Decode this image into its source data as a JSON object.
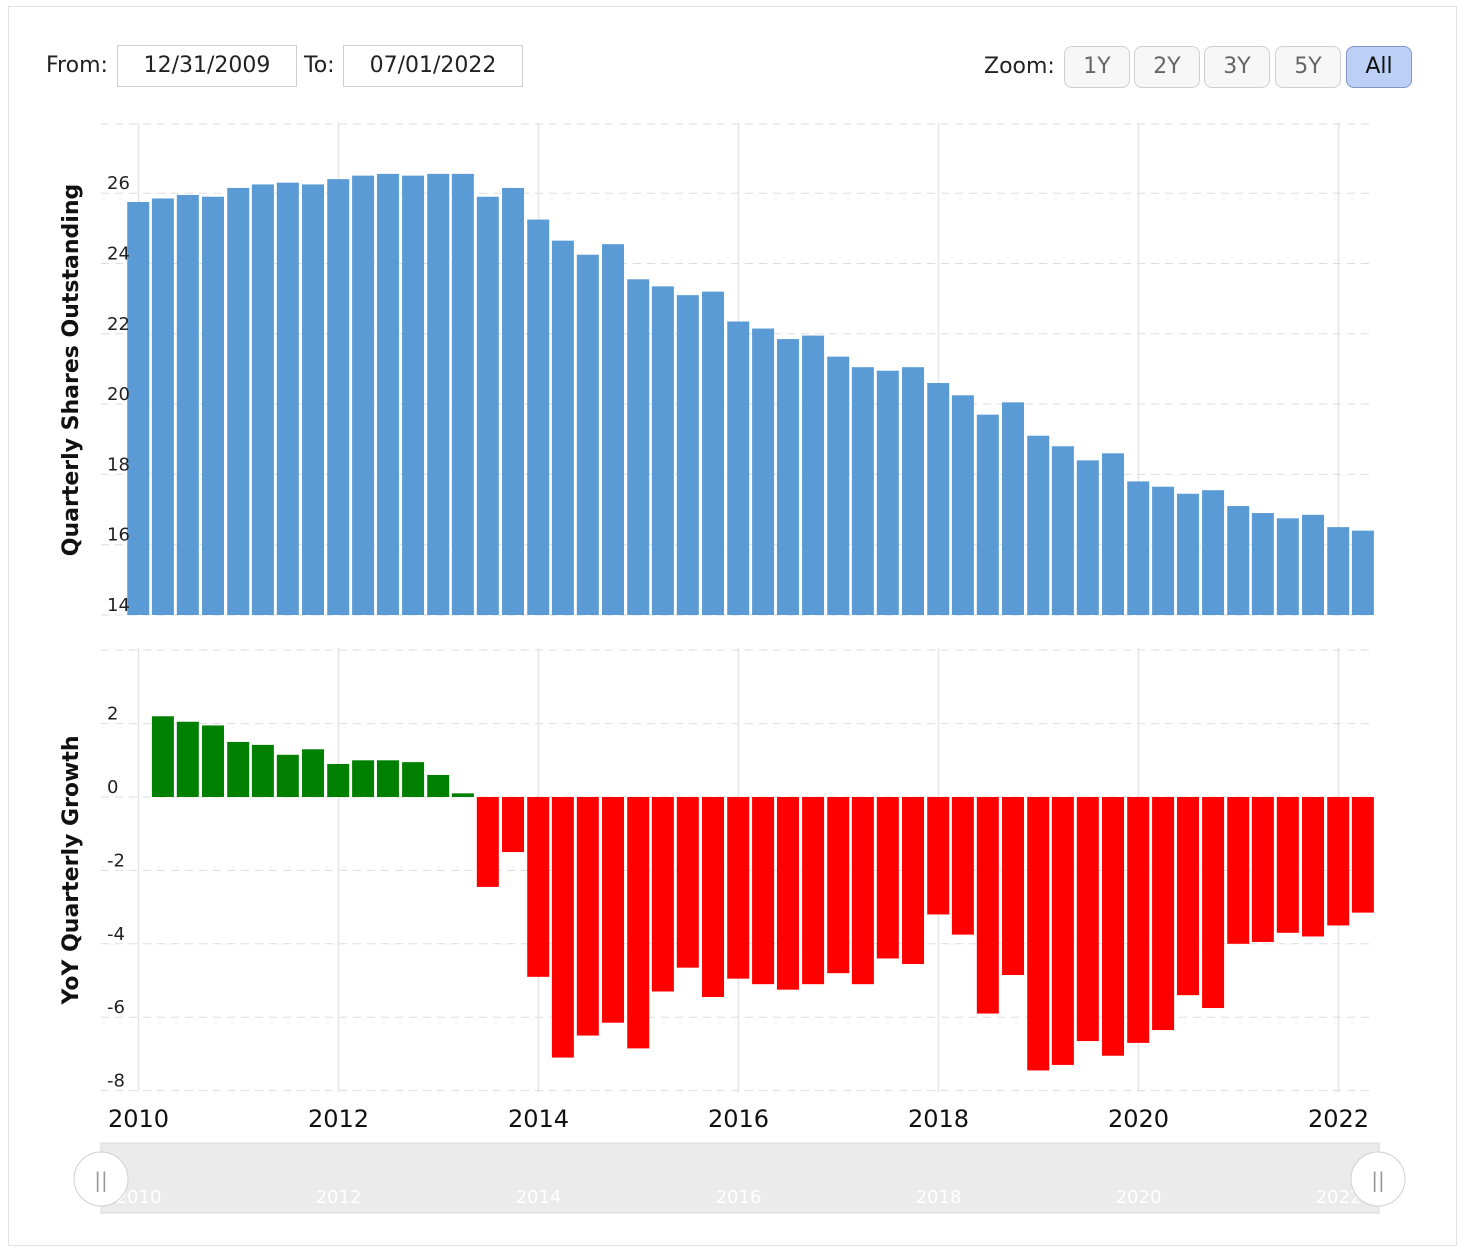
{
  "controls": {
    "from_label": "From:",
    "from_value": "12/31/2009",
    "to_label": "To:",
    "to_value": "07/01/2022",
    "zoom_label": "Zoom:",
    "zoom_options": [
      "1Y",
      "2Y",
      "3Y",
      "5Y",
      "All"
    ],
    "zoom_selected": "All"
  },
  "colors": {
    "shares_bar": "#5b9bd5",
    "growth_positive": "#008000",
    "growth_negative": "#ff0000",
    "active_zoom": "#bcd0f5"
  },
  "chart_data": [
    {
      "type": "bar",
      "ylabel": "Quarterly Shares Outstanding",
      "ylim": [
        14,
        27
      ],
      "yticks": [
        14,
        16,
        18,
        20,
        22,
        24,
        26
      ],
      "grid": true,
      "x": [
        "2009-12-31",
        "2010-03-31",
        "2010-06-30",
        "2010-09-30",
        "2010-12-31",
        "2011-03-31",
        "2011-06-30",
        "2011-09-30",
        "2011-12-31",
        "2012-03-31",
        "2012-06-30",
        "2012-09-30",
        "2012-12-31",
        "2013-03-31",
        "2013-06-30",
        "2013-09-30",
        "2013-12-31",
        "2014-03-31",
        "2014-06-30",
        "2014-09-30",
        "2014-12-31",
        "2015-03-31",
        "2015-06-30",
        "2015-09-30",
        "2015-12-31",
        "2016-03-31",
        "2016-06-30",
        "2016-09-30",
        "2016-12-31",
        "2017-03-31",
        "2017-06-30",
        "2017-09-30",
        "2017-12-31",
        "2018-03-31",
        "2018-06-30",
        "2018-09-30",
        "2018-12-31",
        "2019-03-31",
        "2019-06-30",
        "2019-09-30",
        "2019-12-31",
        "2020-03-31",
        "2020-06-30",
        "2020-09-30",
        "2020-12-31",
        "2021-03-31",
        "2021-06-30",
        "2021-09-30",
        "2021-12-31",
        "2022-03-31",
        "2022-06-30"
      ],
      "series": [
        {
          "values": [
            25.75,
            25.85,
            25.95,
            25.9,
            26.15,
            26.25,
            26.3,
            26.25,
            26.4,
            26.5,
            26.55,
            26.5,
            26.55,
            26.55,
            25.9,
            26.15,
            25.25,
            24.65,
            24.25,
            24.55,
            23.55,
            23.35,
            23.1,
            23.2,
            22.35,
            22.15,
            21.85,
            21.95,
            21.35,
            21.05,
            20.95,
            21.05,
            20.6,
            20.25,
            19.7,
            20.05,
            19.1,
            18.8,
            18.4,
            18.6,
            17.8,
            17.65,
            17.45,
            17.55,
            17.1,
            16.9,
            16.75,
            16.85,
            16.5,
            16.4,
            16.25
          ]
        }
      ],
      "x_tick_labels": [
        "2010",
        "2012",
        "2014",
        "2016",
        "2018",
        "2020",
        "2022"
      ]
    },
    {
      "type": "bar",
      "ylabel": "YoY Quarterly Growth",
      "ylim": [
        -8,
        4
      ],
      "yticks": [
        -8,
        -6,
        -4,
        -2,
        0,
        2
      ],
      "grid": true,
      "x": [
        "2010-03-31",
        "2010-06-30",
        "2010-09-30",
        "2010-12-31",
        "2011-03-31",
        "2011-06-30",
        "2011-09-30",
        "2011-12-31",
        "2012-03-31",
        "2012-06-30",
        "2012-09-30",
        "2012-12-31",
        "2013-03-31",
        "2013-06-30",
        "2013-09-30",
        "2013-12-31",
        "2014-03-31",
        "2014-06-30",
        "2014-09-30",
        "2014-12-31",
        "2015-03-31",
        "2015-06-30",
        "2015-09-30",
        "2015-12-31",
        "2016-03-31",
        "2016-06-30",
        "2016-09-30",
        "2016-12-31",
        "2017-03-31",
        "2017-06-30",
        "2017-09-30",
        "2017-12-31",
        "2018-03-31",
        "2018-06-30",
        "2018-09-30",
        "2018-12-31",
        "2019-03-31",
        "2019-06-30",
        "2019-09-30",
        "2019-12-31",
        "2020-03-31",
        "2020-06-30",
        "2020-09-30",
        "2020-12-31",
        "2021-03-31",
        "2021-06-30",
        "2021-09-30",
        "2021-12-31",
        "2022-03-31",
        "2022-06-30"
      ],
      "series": [
        {
          "values": [
            2.2,
            2.05,
            1.95,
            1.5,
            1.42,
            1.15,
            1.3,
            0.9,
            1.0,
            1.0,
            0.95,
            0.6,
            0.1,
            -2.45,
            -1.5,
            -4.9,
            -7.1,
            -6.5,
            -6.15,
            -6.85,
            -5.3,
            -4.65,
            -5.45,
            -4.95,
            -5.1,
            -5.25,
            -5.1,
            -4.8,
            -5.1,
            -4.4,
            -4.55,
            -3.2,
            -3.75,
            -5.9,
            -4.85,
            -7.45,
            -7.3,
            -6.65,
            -7.05,
            -6.7,
            -6.35,
            -5.4,
            -5.75,
            -4.0,
            -3.95,
            -3.7,
            -3.8,
            -3.5,
            -3.15,
            -3.1
          ]
        }
      ],
      "x_tick_labels": [
        "2010",
        "2012",
        "2014",
        "2016",
        "2018",
        "2020",
        "2022"
      ]
    }
  ],
  "navigator": {
    "year_labels": [
      "2010",
      "2012",
      "2014",
      "2016",
      "2018",
      "2020",
      "2022"
    ],
    "left_handle": "||",
    "right_handle": "||"
  }
}
